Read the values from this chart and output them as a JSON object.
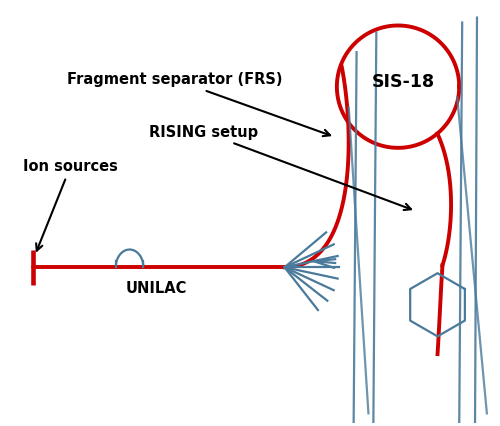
{
  "bg_color": "#ffffff",
  "red_color": "#cc0000",
  "blue_color": "#4a7a9b",
  "black_color": "#000000",
  "labels": {
    "sis18": "SIS-18",
    "frs": "Fragment separator (FRS)",
    "rising": "RISING setup",
    "ion_sources": "Ion sources",
    "unilac": "UNILAC"
  },
  "fig_width": 5.0,
  "fig_height": 4.26
}
